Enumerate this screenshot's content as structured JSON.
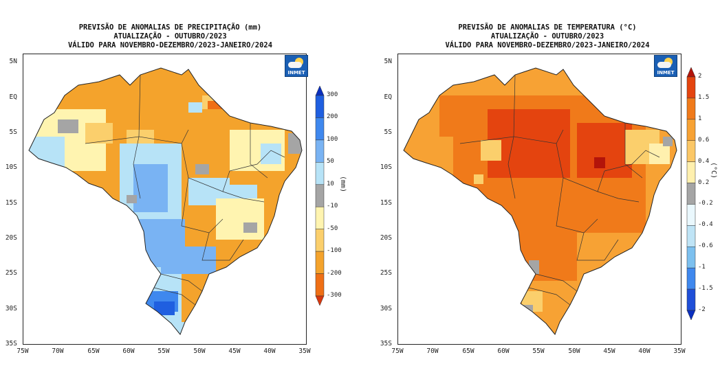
{
  "precip": {
    "title_lines": [
      "PREVISÃO DE ANOMALIAS DE PRECIPITAÇÃO (mm)",
      "ATUALIZAÇÃO - OUTUBRO/2023",
      "VÁLIDO PARA NOVEMBRO-DEZEMBRO/2023-JANEIRO/2024"
    ],
    "unit": "(mm)",
    "colorbar": {
      "labels": [
        "300",
        "200",
        "100",
        "50",
        "10",
        "-10",
        "-50",
        "-100",
        "-200",
        "-300"
      ],
      "colors": [
        "#0a2fbf",
        "#1f5fe0",
        "#3f88ee",
        "#79b3f3",
        "#b7e3f7",
        "#a5a5a5",
        "#fff4b0",
        "#fbcf6c",
        "#f4a32c",
        "#ef6f15",
        "#d8380f"
      ]
    },
    "lat_labels": [
      "5N",
      "EQ",
      "5S",
      "10S",
      "15S",
      "20S",
      "25S",
      "30S",
      "35S"
    ],
    "lon_labels": [
      "75W",
      "70W",
      "65W",
      "60W",
      "55W",
      "50W",
      "45W",
      "40W",
      "35W"
    ]
  },
  "temp": {
    "title_lines": [
      "PREVISÃO DE ANOMALIAS DE TEMPERATURA (°C)",
      "ATUALIZAÇÃO - OUTUBRO/2023",
      "VÁLIDO PARA NOVEMBRO-DEZEMBRO/2023-JANEIRO/2024"
    ],
    "unit": "(°C)",
    "colorbar": {
      "labels": [
        "2",
        "1.5",
        "1",
        "0.6",
        "0.4",
        "0.2",
        "-0.2",
        "-0.4",
        "-0.6",
        "-1",
        "-1.5",
        "-2"
      ],
      "colors": [
        "#b3140a",
        "#e4440f",
        "#f07a1a",
        "#f7a234",
        "#fbc766",
        "#fff0ae",
        "#a5a5a5",
        "#eaf8fd",
        "#bfe4f6",
        "#7cc0ef",
        "#3f88ee",
        "#1f4fd8",
        "#0a2fbf"
      ]
    },
    "lat_labels": [
      "5N",
      "EQ",
      "5S",
      "10S",
      "15S",
      "20S",
      "25S",
      "30S",
      "35S"
    ],
    "lon_labels": [
      "75W",
      "70W",
      "65W",
      "60W",
      "55W",
      "50W",
      "45W",
      "40W",
      "35W"
    ]
  },
  "logo": {
    "text": "INMET"
  }
}
